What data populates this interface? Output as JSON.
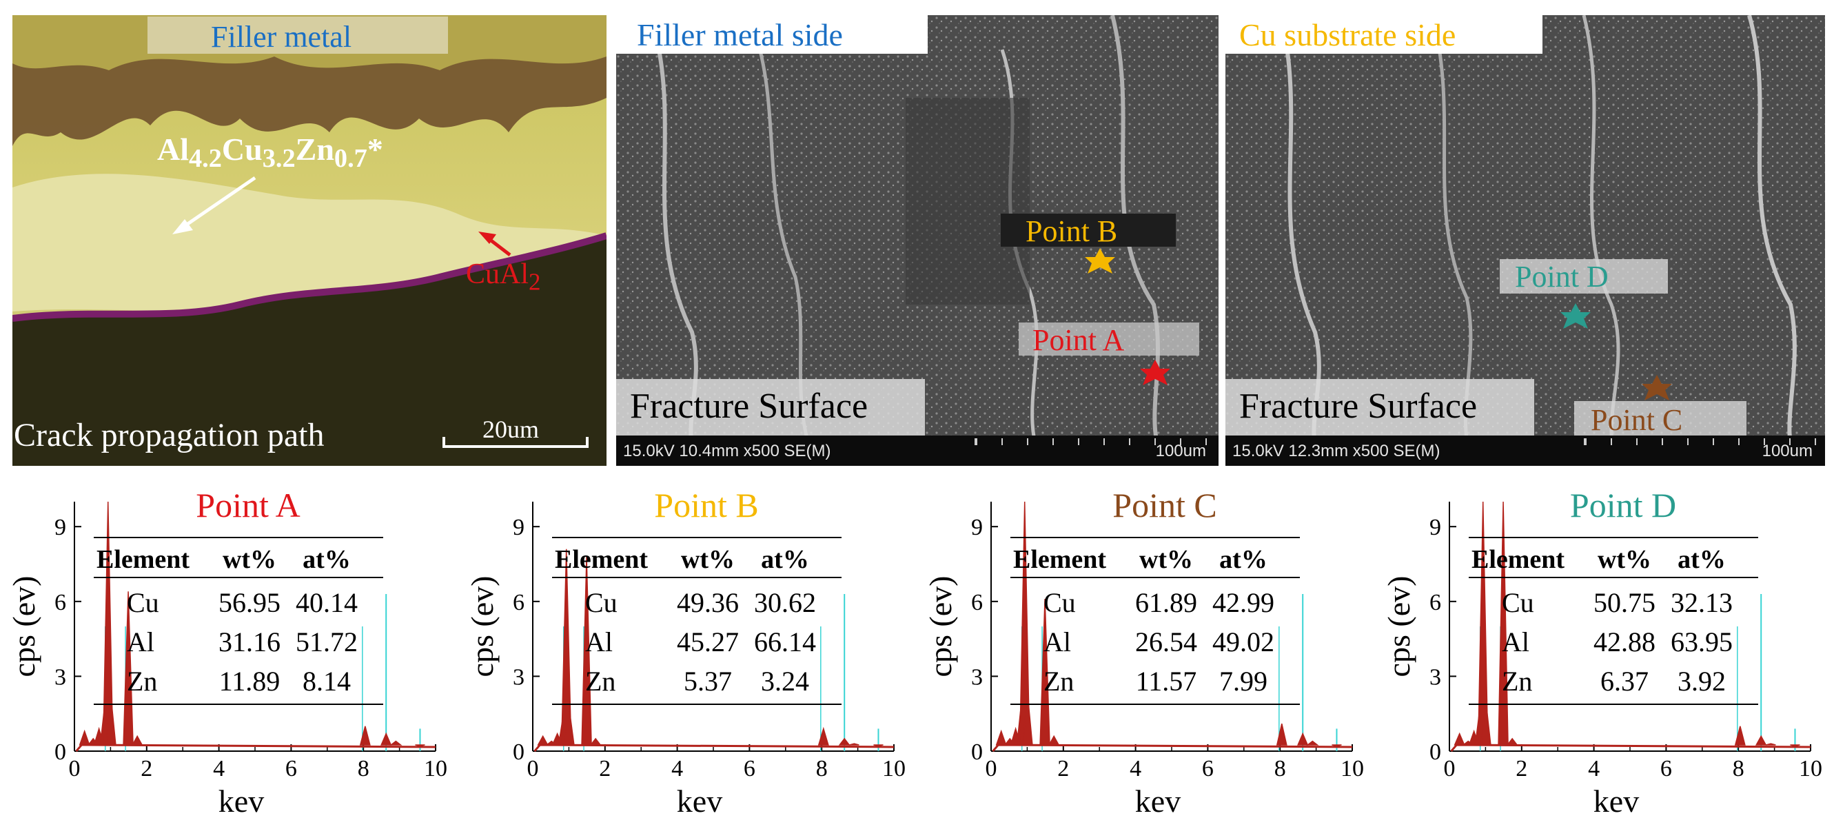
{
  "panels": {
    "optical": {
      "title": "Filler metal",
      "phase_label_html": "Al<sub>4.2</sub>Cu<sub>3.2</sub>Zn<sub>0.7</sub>*",
      "cual2_html": "CuAl<sub>2</sub>",
      "caption": "Crack propagation path",
      "scale": "20um"
    },
    "sem1": {
      "title": "Filler metal side",
      "point_b": "Point B",
      "point_a": "Point A",
      "surface": "Fracture Surface",
      "info": "15.0kV 10.4mm x500 SE(M)",
      "scale": "100um"
    },
    "sem2": {
      "title": "Cu substrate side",
      "point_d": "Point D",
      "point_c": "Point C",
      "surface": "Fracture Surface",
      "info": "15.0kV 12.3mm x500 SE(M)",
      "scale": "100um"
    }
  },
  "colors": {
    "blue": "#1a6fc4",
    "gold": "#f5b800",
    "red": "#e0161b",
    "brown": "#8a4a1c",
    "teal": "#2a9d8f",
    "spectrum": "#b3231c",
    "cyan_line": "#38d4d4"
  },
  "chart_data": [
    {
      "type": "line",
      "title": "Point A",
      "title_color": "#e0161b",
      "xlabel": "kev",
      "ylabel": "cps (ev)",
      "xlim": [
        0,
        10
      ],
      "ylim": [
        0,
        10
      ],
      "xticks": [
        "0",
        "2",
        "4",
        "6",
        "8",
        "10"
      ],
      "yticks": [
        "0",
        "3",
        "6",
        "9"
      ],
      "x": [
        0.28,
        0.52,
        0.68,
        0.85,
        0.93,
        1.01,
        1.49,
        1.74,
        8.05,
        8.63,
        8.9,
        9.57
      ],
      "series": [
        {
          "values": [
            0.8,
            0.5,
            0.9,
            2.0,
            10.0,
            2.2,
            6.4,
            0.6,
            1.0,
            0.7,
            0.4,
            0.2
          ]
        }
      ],
      "table": {
        "headers": [
          "Element",
          "wt%",
          "at%"
        ],
        "rows": [
          [
            "Cu",
            "56.95",
            "40.14"
          ],
          [
            "Al",
            "31.16",
            "51.72"
          ],
          [
            "Zn",
            "11.89",
            "8.14"
          ]
        ]
      }
    },
    {
      "type": "line",
      "title": "Point B",
      "title_color": "#f5b800",
      "xlabel": "kev",
      "ylabel": "cps (ev)",
      "xlim": [
        0,
        10
      ],
      "ylim": [
        0,
        10
      ],
      "xticks": [
        "0",
        "2",
        "4",
        "6",
        "8",
        "10"
      ],
      "yticks": [
        "0",
        "3",
        "6",
        "9"
      ],
      "x": [
        0.28,
        0.52,
        0.68,
        0.85,
        0.93,
        1.01,
        1.49,
        1.74,
        8.05,
        8.63,
        8.9,
        9.57
      ],
      "series": [
        {
          "values": [
            0.6,
            0.4,
            0.7,
            1.5,
            8.1,
            1.7,
            7.8,
            0.5,
            0.9,
            0.5,
            0.3,
            0.2
          ]
        }
      ],
      "table": {
        "headers": [
          "Element",
          "wt%",
          "at%"
        ],
        "rows": [
          [
            "Cu",
            "49.36",
            "30.62"
          ],
          [
            "Al",
            "45.27",
            "66.14"
          ],
          [
            "Zn",
            "5.37",
            "3.24"
          ]
        ]
      }
    },
    {
      "type": "line",
      "title": "Point C",
      "title_color": "#8a4a1c",
      "xlabel": "kev",
      "ylabel": "cps (ev)",
      "xlim": [
        0,
        10
      ],
      "ylim": [
        0,
        10
      ],
      "xticks": [
        "0",
        "2",
        "4",
        "6",
        "8",
        "10"
      ],
      "yticks": [
        "0",
        "3",
        "6",
        "9"
      ],
      "x": [
        0.28,
        0.52,
        0.68,
        0.85,
        0.93,
        1.01,
        1.49,
        1.74,
        8.05,
        8.63,
        8.9,
        9.57
      ],
      "series": [
        {
          "values": [
            0.8,
            0.5,
            0.9,
            2.1,
            10.0,
            2.3,
            6.1,
            0.6,
            1.1,
            0.7,
            0.4,
            0.2
          ]
        }
      ],
      "table": {
        "headers": [
          "Element",
          "wt%",
          "at%"
        ],
        "rows": [
          [
            "Cu",
            "61.89",
            "42.99"
          ],
          [
            "Al",
            "26.54",
            "49.02"
          ],
          [
            "Zn",
            "11.57",
            "7.99"
          ]
        ]
      }
    },
    {
      "type": "line",
      "title": "Point D",
      "title_color": "#2a9d8f",
      "xlabel": "kev",
      "ylabel": "cps (ev)",
      "xlim": [
        0,
        10
      ],
      "ylim": [
        0,
        10
      ],
      "xticks": [
        "0",
        "2",
        "4",
        "6",
        "8",
        "10"
      ],
      "yticks": [
        "0",
        "3",
        "6",
        "9"
      ],
      "x": [
        0.28,
        0.52,
        0.68,
        0.85,
        0.93,
        1.01,
        1.49,
        1.74,
        8.05,
        8.63,
        8.9,
        9.57
      ],
      "series": [
        {
          "values": [
            0.7,
            0.4,
            0.8,
            1.8,
            10.0,
            2.0,
            10.0,
            0.5,
            1.0,
            0.6,
            0.3,
            0.2
          ]
        }
      ],
      "table": {
        "headers": [
          "Element",
          "wt%",
          "at%"
        ],
        "rows": [
          [
            "Cu",
            "50.75",
            "32.13"
          ],
          [
            "Al",
            "42.88",
            "63.95"
          ],
          [
            "Zn",
            "6.37",
            "3.92"
          ]
        ]
      }
    }
  ]
}
